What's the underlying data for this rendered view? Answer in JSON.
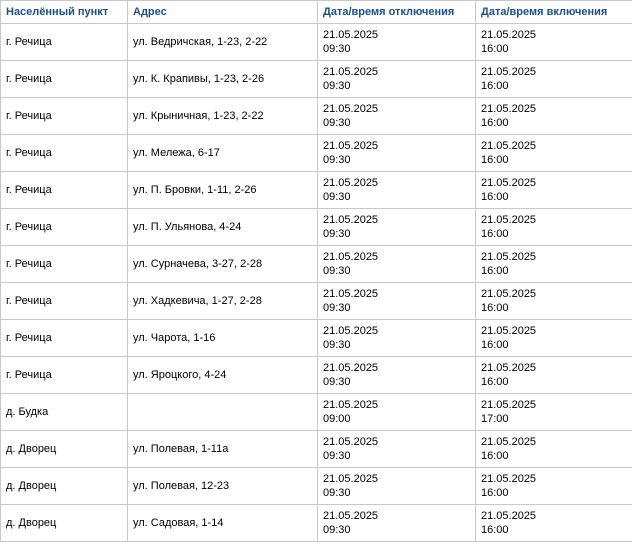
{
  "table": {
    "headers": [
      "Населённый пункт",
      "Адрес",
      "Дата/время отключения",
      "Дата/время включения"
    ],
    "rows": [
      {
        "locality": "г. Речица",
        "address": "ул. Ведричская, 1-23, 2-22",
        "off_date": "21.05.2025",
        "off_time": "09:30",
        "on_date": "21.05.2025",
        "on_time": "16:00"
      },
      {
        "locality": "г. Речица",
        "address": "ул. К. Крапивы, 1-23, 2-26",
        "off_date": "21.05.2025",
        "off_time": "09:30",
        "on_date": "21.05.2025",
        "on_time": "16:00"
      },
      {
        "locality": "г. Речица",
        "address": "ул. Крыничная, 1-23, 2-22",
        "off_date": "21.05.2025",
        "off_time": "09:30",
        "on_date": "21.05.2025",
        "on_time": "16:00"
      },
      {
        "locality": "г. Речица",
        "address": "ул. Мележа, 6-17",
        "off_date": "21.05.2025",
        "off_time": "09:30",
        "on_date": "21.05.2025",
        "on_time": "16:00"
      },
      {
        "locality": "г. Речица",
        "address": "ул. П. Бровки, 1-11, 2-26",
        "off_date": "21.05.2025",
        "off_time": "09:30",
        "on_date": "21.05.2025",
        "on_time": "16:00"
      },
      {
        "locality": "г. Речица",
        "address": "ул. П. Ульянова, 4-24",
        "off_date": "21.05.2025",
        "off_time": "09:30",
        "on_date": "21.05.2025",
        "on_time": "16:00"
      },
      {
        "locality": "г. Речица",
        "address": "ул. Сурначева, 3-27, 2-28",
        "off_date": "21.05.2025",
        "off_time": "09:30",
        "on_date": "21.05.2025",
        "on_time": "16:00"
      },
      {
        "locality": "г. Речица",
        "address": "ул. Хадкевича, 1-27, 2-28",
        "off_date": "21.05.2025",
        "off_time": "09:30",
        "on_date": "21.05.2025",
        "on_time": "16:00"
      },
      {
        "locality": "г. Речица",
        "address": "ул. Чарота, 1-16",
        "off_date": "21.05.2025",
        "off_time": "09:30",
        "on_date": "21.05.2025",
        "on_time": "16:00"
      },
      {
        "locality": "г. Речица",
        "address": "ул. Яроцкого, 4-24",
        "off_date": "21.05.2025",
        "off_time": "09:30",
        "on_date": "21.05.2025",
        "on_time": "16:00"
      },
      {
        "locality": "д. Будка",
        "address": "",
        "off_date": "21.05.2025",
        "off_time": "09:00",
        "on_date": "21.05.2025",
        "on_time": "17:00"
      },
      {
        "locality": "д. Дворец",
        "address": "ул. Полевая, 1-11а",
        "off_date": "21.05.2025",
        "off_time": "09:30",
        "on_date": "21.05.2025",
        "on_time": "16:00"
      },
      {
        "locality": "д. Дворец",
        "address": "ул. Полевая, 12-23",
        "off_date": "21.05.2025",
        "off_time": "09:30",
        "on_date": "21.05.2025",
        "on_time": "16:00"
      },
      {
        "locality": "д. Дворец",
        "address": "ул. Садовая, 1-14",
        "off_date": "21.05.2025",
        "off_time": "09:30",
        "on_date": "21.05.2025",
        "on_time": "16:00"
      }
    ]
  },
  "colors": {
    "header_text": "#1c4f8c",
    "border": "#c8c8c8",
    "text": "#000000",
    "background": "#ffffff"
  }
}
